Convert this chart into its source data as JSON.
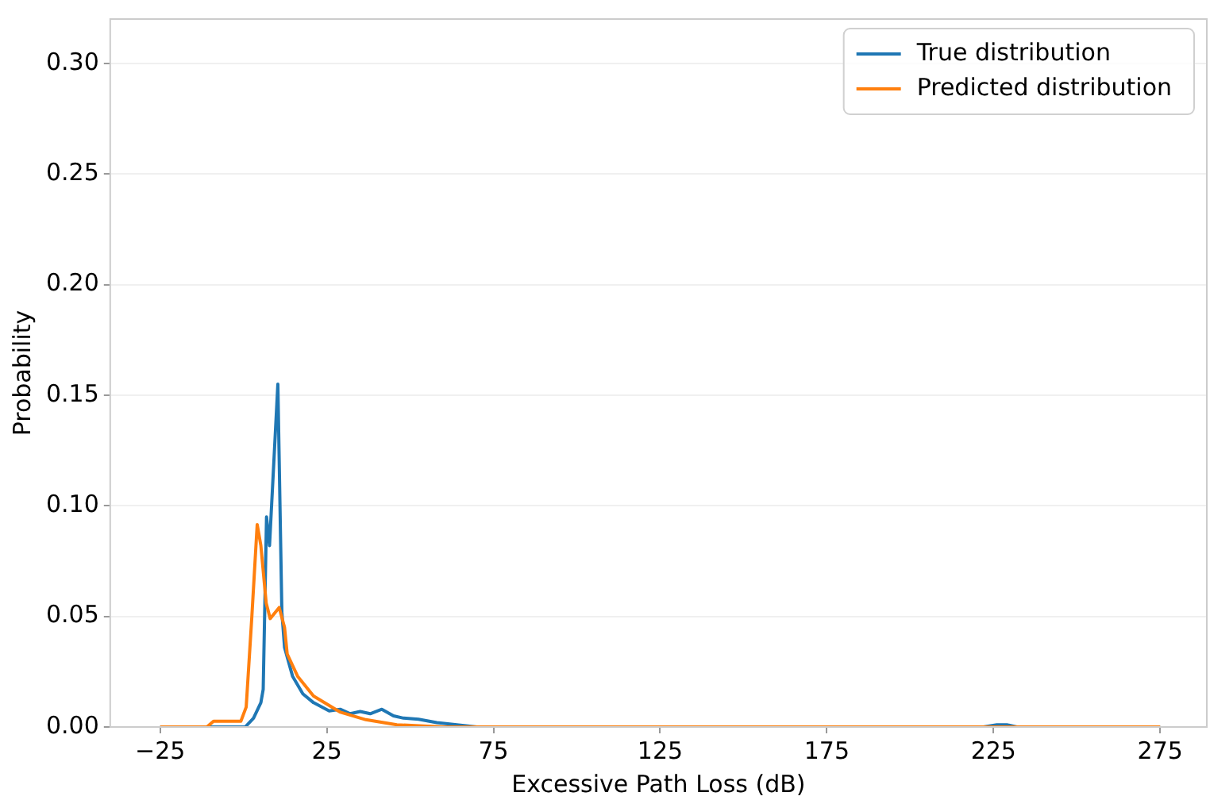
{
  "chart_data": {
    "type": "line",
    "xlabel": "Excessive Path Loss (dB)",
    "ylabel": "Probability",
    "xlim": [
      -40,
      289
    ],
    "xticks": [
      {
        "value": -25,
        "label": "−25"
      },
      25,
      75,
      125,
      175,
      225,
      275
    ],
    "ylim": [
      0,
      0.32
    ],
    "yticks": [
      {
        "value": 0,
        "label": "0.00"
      },
      {
        "value": 0.05,
        "label": "0.05"
      },
      {
        "value": 0.1,
        "label": "0.10"
      },
      {
        "value": 0.15,
        "label": "0.15"
      },
      {
        "value": 0.2,
        "label": "0.20"
      },
      {
        "value": 0.25,
        "label": "0.25"
      },
      {
        "value": 0.3,
        "label": "0.30"
      }
    ],
    "grid": "y",
    "legend": "top right",
    "marker": "none",
    "line_style": "solid",
    "series": [
      {
        "name": "True distribution",
        "color": "#1f77b4",
        "x": [
          -25,
          0.5,
          3,
          5.2,
          5.9,
          6.9,
          7.8,
          10.3,
          11.5,
          12.3,
          14.7,
          17.8,
          21,
          25.7,
          29,
          32,
          35,
          38,
          41.5,
          45,
          48,
          52.5,
          58,
          64,
          70,
          100,
          150,
          200,
          222,
          226,
          229,
          232,
          240,
          275
        ],
        "values": [
          0,
          0,
          0.004,
          0.011,
          0.017,
          0.095,
          0.082,
          0.155,
          0.052,
          0.036,
          0.023,
          0.015,
          0.011,
          0.0073,
          0.008,
          0.006,
          0.007,
          0.006,
          0.008,
          0.005,
          0.004,
          0.0035,
          0.002,
          0.001,
          0,
          0,
          0,
          0,
          0,
          0.001,
          0.001,
          0,
          0,
          0
        ]
      },
      {
        "name": "Predicted distribution",
        "color": "#ff7f0e",
        "x": [
          -25,
          -11,
          -9,
          -0.8,
          0.8,
          2.5,
          4.1,
          5.2,
          6.8,
          8,
          10.7,
          12.3,
          13.1,
          16.2,
          21,
          28.9,
          36.7,
          46,
          60,
          100,
          200,
          275
        ],
        "values": [
          0,
          0,
          0.0026,
          0.0026,
          0.009,
          0.05,
          0.0915,
          0.082,
          0.056,
          0.049,
          0.054,
          0.045,
          0.033,
          0.023,
          0.014,
          0.0068,
          0.0033,
          0.001,
          0,
          0,
          0,
          0
        ]
      }
    ]
  }
}
